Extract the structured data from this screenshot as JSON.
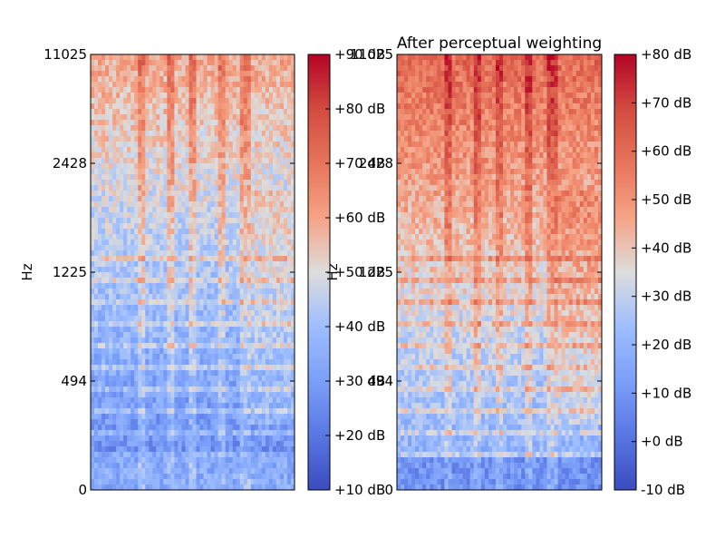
{
  "chart_data": [
    {
      "type": "heatmap",
      "title": "",
      "xlabel": "",
      "ylabel": "Hz",
      "y_ticks": [
        "0",
        "494",
        "1225",
        "2428",
        "11025"
      ],
      "ylim": [
        0,
        11025
      ],
      "colormap": "coolwarm",
      "colorbar": {
        "ticks": [
          "+10 dB",
          "+20 dB",
          "+30 dB",
          "+40 dB",
          "+50 dB",
          "+60 dB",
          "+70 dB",
          "+80 dB",
          "+90 dB"
        ],
        "range": [
          10,
          90
        ]
      }
    },
    {
      "type": "heatmap",
      "title": "After perceptual weighting",
      "xlabel": "",
      "ylabel": "Hz",
      "y_ticks": [
        "0",
        "494",
        "1225",
        "2428",
        "11025"
      ],
      "ylim": [
        0,
        11025
      ],
      "colormap": "coolwarm",
      "colorbar": {
        "ticks": [
          "-10 dB",
          "+0 dB",
          "+10 dB",
          "+20 dB",
          "+30 dB",
          "+40 dB",
          "+50 dB",
          "+60 dB",
          "+70 dB",
          "+80 dB"
        ],
        "range": [
          -10,
          80
        ]
      }
    }
  ],
  "colors": {
    "cmap_low": "#3b4cc0",
    "cmap_mid": "#dddddd",
    "cmap_high": "#b40426"
  }
}
